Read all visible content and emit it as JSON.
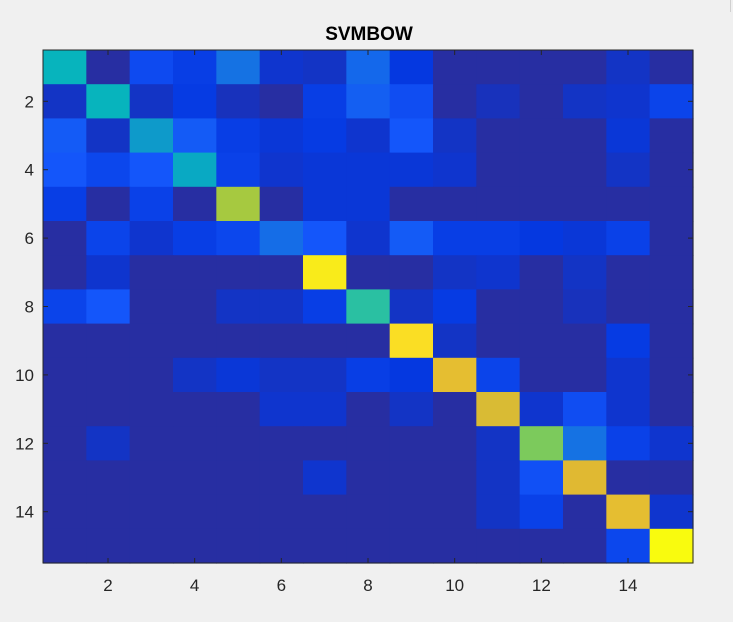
{
  "chart_data": {
    "type": "heatmap",
    "title": "SVMBOW",
    "xlabel": "",
    "ylabel": "",
    "n": 15,
    "xlim": [
      0.5,
      15.5
    ],
    "ylim": [
      0.5,
      15.5
    ],
    "y_direction": "reverse",
    "x_ticks": [
      2,
      4,
      6,
      8,
      10,
      12,
      14
    ],
    "y_ticks": [
      2,
      4,
      6,
      8,
      10,
      12,
      14
    ],
    "colormap": "parula",
    "clim": [
      0,
      1
    ],
    "grid": false,
    "values": [
      [
        0.48,
        0.05,
        0.16,
        0.12,
        0.26,
        0.08,
        0.07,
        0.24,
        0.1,
        0.05,
        0.05,
        0.05,
        0.05,
        0.07,
        0.05
      ],
      [
        0.07,
        0.48,
        0.07,
        0.11,
        0.06,
        0.05,
        0.12,
        0.22,
        0.17,
        0.05,
        0.06,
        0.05,
        0.07,
        0.08,
        0.14
      ],
      [
        0.21,
        0.07,
        0.36,
        0.21,
        0.12,
        0.09,
        0.11,
        0.08,
        0.2,
        0.07,
        0.05,
        0.05,
        0.05,
        0.09,
        0.05
      ],
      [
        0.2,
        0.15,
        0.2,
        0.4,
        0.13,
        0.08,
        0.09,
        0.09,
        0.09,
        0.08,
        0.05,
        0.05,
        0.05,
        0.07,
        0.05
      ],
      [
        0.12,
        0.05,
        0.13,
        0.05,
        0.72,
        0.05,
        0.09,
        0.09,
        0.05,
        0.05,
        0.05,
        0.05,
        0.05,
        0.05,
        0.05
      ],
      [
        0.05,
        0.14,
        0.08,
        0.12,
        0.15,
        0.25,
        0.2,
        0.08,
        0.21,
        0.12,
        0.12,
        0.1,
        0.09,
        0.13,
        0.05
      ],
      [
        0.05,
        0.08,
        0.05,
        0.05,
        0.05,
        0.05,
        0.96,
        0.05,
        0.05,
        0.07,
        0.08,
        0.05,
        0.07,
        0.05,
        0.05
      ],
      [
        0.14,
        0.2,
        0.05,
        0.05,
        0.07,
        0.07,
        0.12,
        0.57,
        0.07,
        0.11,
        0.05,
        0.05,
        0.06,
        0.05,
        0.05
      ],
      [
        0.05,
        0.05,
        0.05,
        0.05,
        0.05,
        0.05,
        0.05,
        0.05,
        0.93,
        0.07,
        0.05,
        0.05,
        0.05,
        0.11,
        0.05
      ],
      [
        0.05,
        0.05,
        0.05,
        0.07,
        0.09,
        0.07,
        0.07,
        0.12,
        0.1,
        0.82,
        0.14,
        0.05,
        0.05,
        0.08,
        0.05
      ],
      [
        0.05,
        0.05,
        0.05,
        0.05,
        0.05,
        0.08,
        0.08,
        0.05,
        0.07,
        0.05,
        0.79,
        0.08,
        0.17,
        0.08,
        0.05
      ],
      [
        0.05,
        0.07,
        0.05,
        0.05,
        0.05,
        0.05,
        0.05,
        0.05,
        0.05,
        0.05,
        0.07,
        0.67,
        0.26,
        0.13,
        0.08
      ],
      [
        0.05,
        0.05,
        0.05,
        0.05,
        0.05,
        0.05,
        0.08,
        0.05,
        0.05,
        0.05,
        0.07,
        0.18,
        0.8,
        0.05,
        0.05
      ],
      [
        0.05,
        0.05,
        0.05,
        0.05,
        0.05,
        0.05,
        0.05,
        0.05,
        0.05,
        0.05,
        0.07,
        0.13,
        0.05,
        0.82,
        0.08
      ],
      [
        0.05,
        0.05,
        0.05,
        0.05,
        0.05,
        0.05,
        0.05,
        0.05,
        0.05,
        0.05,
        0.05,
        0.05,
        0.05,
        0.15,
        1.0
      ]
    ]
  },
  "colors": {
    "background": "#f0f0f0",
    "axes_box": "#262626",
    "tick_text": "#262626"
  }
}
